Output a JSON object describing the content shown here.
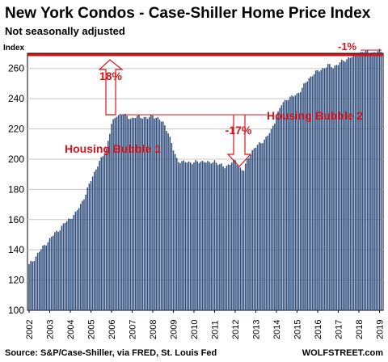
{
  "chart_data": {
    "type": "bar",
    "title": "New York Condos - Case-Shiller Home Price Index",
    "subtitle": "Not seasonally adjusted",
    "ylabel": "Index",
    "ylim": [
      100,
      270
    ],
    "yticks": [
      100,
      120,
      140,
      160,
      180,
      200,
      220,
      240,
      260
    ],
    "xlim": [
      2002,
      2019.1
    ],
    "xticks": [
      "2002",
      "2003",
      "2004",
      "2005",
      "2006",
      "2007",
      "2008",
      "2009",
      "2010",
      "2011",
      "2012",
      "2013",
      "2014",
      "2015",
      "2016",
      "2017",
      "2018",
      "2019"
    ],
    "bar_color": "#2e4d7c",
    "accent_color": "#d8141a",
    "source": "Source: S&P/Case-Shiller, via FRED,  St. Louis Fed",
    "brand": "WOLFSTREET.com",
    "points": [
      [
        2002.0,
        130
      ],
      [
        2002.25,
        134
      ],
      [
        2002.5,
        139
      ],
      [
        2002.75,
        143
      ],
      [
        2003.0,
        147
      ],
      [
        2003.25,
        151
      ],
      [
        2003.5,
        154
      ],
      [
        2003.75,
        158
      ],
      [
        2004.0,
        161
      ],
      [
        2004.25,
        164
      ],
      [
        2004.5,
        170
      ],
      [
        2004.75,
        177
      ],
      [
        2005.0,
        186
      ],
      [
        2005.25,
        194
      ],
      [
        2005.5,
        200
      ],
      [
        2005.75,
        207
      ],
      [
        2006.0,
        223
      ],
      [
        2006.25,
        229
      ],
      [
        2006.5,
        230
      ],
      [
        2006.75,
        228
      ],
      [
        2007.0,
        227
      ],
      [
        2007.25,
        228
      ],
      [
        2007.5,
        228
      ],
      [
        2007.75,
        227
      ],
      [
        2008.0,
        229
      ],
      [
        2008.25,
        227
      ],
      [
        2008.5,
        224
      ],
      [
        2008.75,
        218
      ],
      [
        2009.0,
        206
      ],
      [
        2009.2,
        199
      ],
      [
        2009.5,
        198
      ],
      [
        2009.75,
        198
      ],
      [
        2010.0,
        198
      ],
      [
        2010.25,
        198
      ],
      [
        2010.5,
        199
      ],
      [
        2010.75,
        197
      ],
      [
        2011.0,
        199
      ],
      [
        2011.25,
        196
      ],
      [
        2011.5,
        195
      ],
      [
        2011.75,
        197
      ],
      [
        2012.0,
        199
      ],
      [
        2012.25,
        194
      ],
      [
        2012.4,
        192
      ],
      [
        2012.6,
        200
      ],
      [
        2012.8,
        205
      ],
      [
        2013.0,
        208
      ],
      [
        2013.25,
        211
      ],
      [
        2013.5,
        214
      ],
      [
        2013.75,
        219
      ],
      [
        2014.0,
        228
      ],
      [
        2014.25,
        236
      ],
      [
        2014.5,
        240
      ],
      [
        2014.75,
        241
      ],
      [
        2015.0,
        243
      ],
      [
        2015.25,
        247
      ],
      [
        2015.5,
        252
      ],
      [
        2015.75,
        256
      ],
      [
        2016.0,
        258
      ],
      [
        2016.25,
        260
      ],
      [
        2016.5,
        262
      ],
      [
        2016.75,
        261
      ],
      [
        2017.0,
        263
      ],
      [
        2017.25,
        265
      ],
      [
        2017.5,
        267
      ],
      [
        2017.75,
        268
      ],
      [
        2018.0,
        270
      ],
      [
        2018.25,
        271
      ],
      [
        2018.5,
        271
      ],
      [
        2018.75,
        270
      ],
      [
        2019.0,
        272
      ],
      [
        2019.1,
        271
      ]
    ],
    "annotations": {
      "pct_up": "18%",
      "pct_down": "-17%",
      "pct_recent": "-1%",
      "bubble1": "Housing Bubble 1",
      "bubble2": "Housing Bubble 2"
    }
  }
}
